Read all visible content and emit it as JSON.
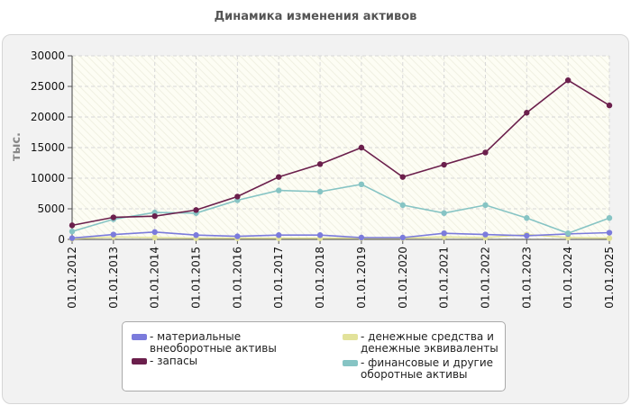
{
  "chart_data": {
    "type": "line",
    "title": "Динамика изменения активов",
    "ylabel": "тыс.",
    "xlabel": "",
    "ylim": [
      0,
      30000
    ],
    "yticks": [
      0,
      5000,
      10000,
      15000,
      20000,
      25000,
      30000
    ],
    "grid": true,
    "legend_position": "bottom",
    "categories": [
      "01.01.2012",
      "01.01.2013",
      "01.01.2014",
      "01.01.2015",
      "01.01.2016",
      "01.01.2017",
      "01.01.2018",
      "01.01.2019",
      "01.01.2020",
      "01.01.2021",
      "01.01.2022",
      "01.01.2023",
      "01.01.2024",
      "01.01.2025"
    ],
    "series": [
      {
        "name": "- материальные внеоборотные активы",
        "color": "#7b7bdc",
        "values": [
          200,
          800,
          1200,
          700,
          500,
          700,
          700,
          300,
          300,
          1000,
          800,
          600,
          900,
          1100
        ]
      },
      {
        "name": "- запасы",
        "color": "#6b1f4c",
        "values": [
          2300,
          3600,
          3800,
          4800,
          7000,
          10200,
          12300,
          15000,
          10200,
          12200,
          14200,
          20700,
          26000,
          21900
        ]
      },
      {
        "name": "- денежные средства и денежные эквиваленты",
        "color": "#e2e29a",
        "values": [
          100,
          400,
          300,
          200,
          200,
          200,
          200,
          200,
          200,
          400,
          300,
          800,
          300,
          200
        ]
      },
      {
        "name": "- финансовые и другие оборотные активы",
        "color": "#86c4c4",
        "values": [
          1300,
          3300,
          4400,
          4300,
          6400,
          8000,
          7800,
          9000,
          5600,
          4300,
          5600,
          3500,
          1000,
          3500
        ]
      }
    ]
  },
  "legend": {
    "item1": "- материальные внеоборотные активы",
    "item2": "- запасы",
    "item3": "- денежные средства и денежные эквиваленты",
    "item4": "- финансовые и другие оборотные активы"
  },
  "colors": {
    "series1": "#7b7bdc",
    "series2": "#6b1f4c",
    "series3": "#e2e29a",
    "series4": "#86c4c4"
  }
}
